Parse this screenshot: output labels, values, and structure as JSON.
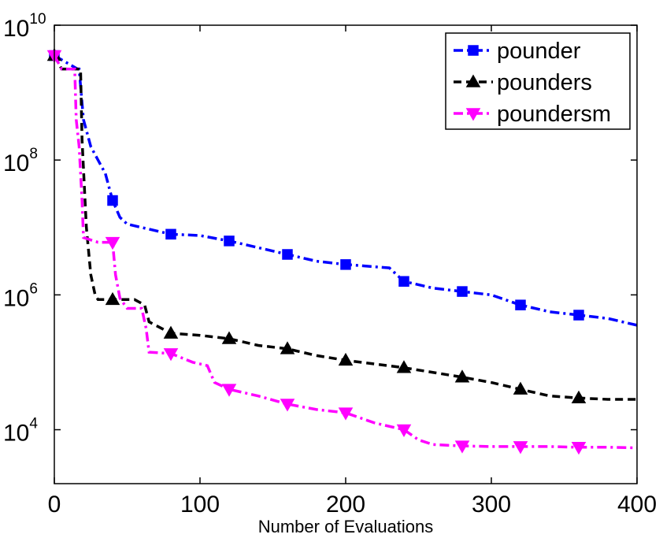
{
  "chart_data": {
    "type": "line",
    "title": "",
    "xlabel": "Number of Evaluations",
    "ylabel": "",
    "xlim": [
      0,
      400
    ],
    "ylim_log10": [
      3.2,
      10
    ],
    "y_scale": "log",
    "grid": false,
    "legend_position": "top-right",
    "x_ticks": [
      {
        "value": 0,
        "label": "0"
      },
      {
        "value": 100,
        "label": "100"
      },
      {
        "value": 200,
        "label": "200"
      },
      {
        "value": 300,
        "label": "300"
      },
      {
        "value": 400,
        "label": "400"
      }
    ],
    "y_ticks": [
      {
        "log10": 4,
        "base": "10",
        "exp": "4"
      },
      {
        "log10": 6,
        "base": "10",
        "exp": "6"
      },
      {
        "log10": 8,
        "base": "10",
        "exp": "8"
      },
      {
        "log10": 10,
        "base": "10",
        "exp": "10"
      }
    ],
    "series": [
      {
        "name": "pounder",
        "color": "#0000ff",
        "line_style": "dash-dot",
        "marker": "square",
        "marker_icon": "square-icon",
        "x": [
          0,
          16,
          17,
          20,
          25,
          30,
          35,
          40,
          45,
          50,
          60,
          80,
          100,
          120,
          140,
          160,
          180,
          200,
          230,
          240,
          260,
          280,
          300,
          320,
          340,
          360,
          380,
          400
        ],
        "log10_y": [
          9.55,
          9.35,
          9.35,
          8.6,
          8.2,
          8.0,
          7.8,
          7.4,
          7.15,
          7.05,
          7.0,
          6.9,
          6.88,
          6.8,
          6.7,
          6.6,
          6.5,
          6.45,
          6.4,
          6.2,
          6.1,
          6.05,
          6.0,
          5.85,
          5.75,
          5.7,
          5.65,
          5.55
        ],
        "marker_points": {
          "x": [
            0,
            40,
            80,
            120,
            160,
            200,
            240,
            280,
            320,
            360
          ],
          "log10_y": [
            9.55,
            7.4,
            6.9,
            6.8,
            6.6,
            6.45,
            6.2,
            6.05,
            5.85,
            5.7
          ]
        }
      },
      {
        "name": "pounders",
        "color": "#000000",
        "line_style": "dashed",
        "marker": "triangle-up",
        "marker_icon": "triangle-up-icon",
        "x": [
          0,
          5,
          18,
          19,
          22,
          25,
          28,
          30,
          40,
          55,
          62,
          65,
          80,
          100,
          120,
          140,
          160,
          180,
          200,
          240,
          280,
          300,
          320,
          340,
          360,
          380,
          400
        ],
        "log10_y": [
          9.55,
          9.35,
          9.35,
          8.3,
          7.0,
          6.3,
          6.0,
          5.93,
          5.93,
          5.93,
          5.85,
          5.6,
          5.43,
          5.4,
          5.35,
          5.25,
          5.2,
          5.1,
          5.03,
          4.92,
          4.78,
          4.7,
          4.6,
          4.5,
          4.47,
          4.45,
          4.45
        ],
        "marker_points": {
          "x": [
            0,
            40,
            80,
            120,
            160,
            200,
            240,
            280,
            320,
            360
          ],
          "log10_y": [
            9.55,
            5.93,
            5.43,
            5.35,
            5.2,
            5.03,
            4.92,
            4.78,
            4.6,
            4.47
          ]
        }
      },
      {
        "name": "poundersm",
        "color": "#ff00ff",
        "line_style": "dash-dot",
        "marker": "triangle-down",
        "marker_icon": "triangle-down-icon",
        "x": [
          0,
          5,
          14,
          15,
          17,
          19,
          20,
          30,
          40,
          42,
          45,
          50,
          60,
          63,
          65,
          80,
          95,
          105,
          110,
          120,
          140,
          160,
          180,
          200,
          220,
          240,
          250,
          260,
          280,
          300,
          320,
          340,
          360,
          380,
          400
        ],
        "log10_y": [
          9.55,
          9.35,
          9.35,
          8.6,
          8.2,
          7.4,
          6.85,
          6.78,
          6.78,
          6.3,
          5.95,
          5.8,
          5.8,
          5.5,
          5.15,
          5.13,
          5.0,
          4.95,
          4.7,
          4.6,
          4.5,
          4.38,
          4.3,
          4.25,
          4.1,
          4.0,
          3.85,
          3.78,
          3.76,
          3.75,
          3.75,
          3.75,
          3.74,
          3.74,
          3.73
        ],
        "marker_points": {
          "x": [
            0,
            40,
            80,
            120,
            160,
            200,
            240,
            280,
            320,
            360
          ],
          "log10_y": [
            9.55,
            6.78,
            5.13,
            4.6,
            4.38,
            4.25,
            4.0,
            3.76,
            3.75,
            3.74
          ]
        }
      }
    ]
  }
}
